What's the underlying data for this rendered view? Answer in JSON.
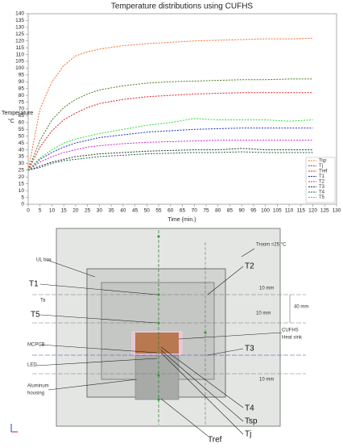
{
  "chart_data": {
    "type": "line",
    "title": "Temperature distributions using CUFHS",
    "x_label": "Time (min.)",
    "y_label": "Temperature",
    "y_unit": "°C",
    "x": [
      0,
      5,
      10,
      15,
      20,
      25,
      30,
      40,
      50,
      60,
      70,
      80,
      90,
      100,
      110,
      120
    ],
    "xlim": [
      0,
      130
    ],
    "xticks": [
      0,
      5,
      10,
      15,
      20,
      25,
      30,
      35,
      40,
      45,
      50,
      55,
      60,
      65,
      70,
      75,
      80,
      85,
      90,
      95,
      100,
      105,
      110,
      115,
      120,
      125,
      130
    ],
    "ylim": [
      0,
      140
    ],
    "yticks": [
      0,
      5,
      10,
      15,
      20,
      25,
      30,
      35,
      40,
      45,
      50,
      55,
      60,
      65,
      70,
      75,
      80,
      85,
      90,
      95,
      100,
      105,
      110,
      115,
      120,
      125,
      130,
      135,
      140
    ],
    "legend": "lower right",
    "series": [
      {
        "name": "Tsp",
        "color": "#f07030",
        "values": [
          25,
          70,
          90,
          102,
          109,
          112,
          114,
          116.5,
          118,
          119,
          120,
          120.5,
          121,
          121.5,
          121.5,
          122
        ]
      },
      {
        "name": "Tj",
        "color": "#4a7a20",
        "values": [
          25,
          47,
          62,
          71,
          77,
          81,
          84,
          87,
          89,
          90,
          90.5,
          91,
          91.5,
          91.5,
          92,
          92
        ]
      },
      {
        "name": "Tref",
        "color": "#e02020",
        "values": [
          25,
          42,
          54,
          62,
          67,
          71,
          74,
          77,
          79,
          80,
          81,
          81.5,
          82,
          82,
          82,
          82
        ]
      },
      {
        "name": "T1",
        "color": "#2030c0",
        "values": [
          25,
          33,
          38,
          42,
          45,
          47,
          49,
          51,
          53,
          54,
          55,
          55.5,
          56,
          56,
          56,
          56
        ]
      },
      {
        "name": "T2",
        "color": "#d020d0",
        "values": [
          25,
          31,
          35,
          38,
          40,
          42,
          43,
          44.5,
          45.5,
          46,
          46.5,
          47,
          47,
          47,
          47,
          47
        ]
      },
      {
        "name": "T3",
        "color": "#303030",
        "values": [
          25,
          28,
          31,
          33,
          35,
          36,
          37,
          38,
          39,
          39.5,
          40,
          40,
          41,
          40,
          40,
          40
        ]
      },
      {
        "name": "T4",
        "color": "#1a6a3a",
        "values": [
          25,
          27,
          30,
          32,
          33,
          34,
          35,
          36,
          37,
          37.5,
          38,
          38,
          38.5,
          38,
          38,
          38
        ]
      },
      {
        "name": "T5",
        "color": "#30e030",
        "values": [
          25,
          34,
          40,
          45,
          48,
          50,
          52,
          55,
          58,
          60,
          63,
          62,
          62,
          62,
          61,
          62
        ]
      }
    ]
  },
  "diagram": {
    "labels": [
      "Troom =25 °C",
      "UL box",
      "T1",
      "Ta",
      "T5",
      "T2",
      "10 mm",
      "40 mm",
      "10 mm",
      "CUFHS",
      "Heat sink",
      "MCPCB",
      "LED",
      "Aluminum",
      "housing",
      "T3",
      "10 mm",
      "T4",
      "Tsp",
      "Tj",
      "Tref"
    ]
  }
}
